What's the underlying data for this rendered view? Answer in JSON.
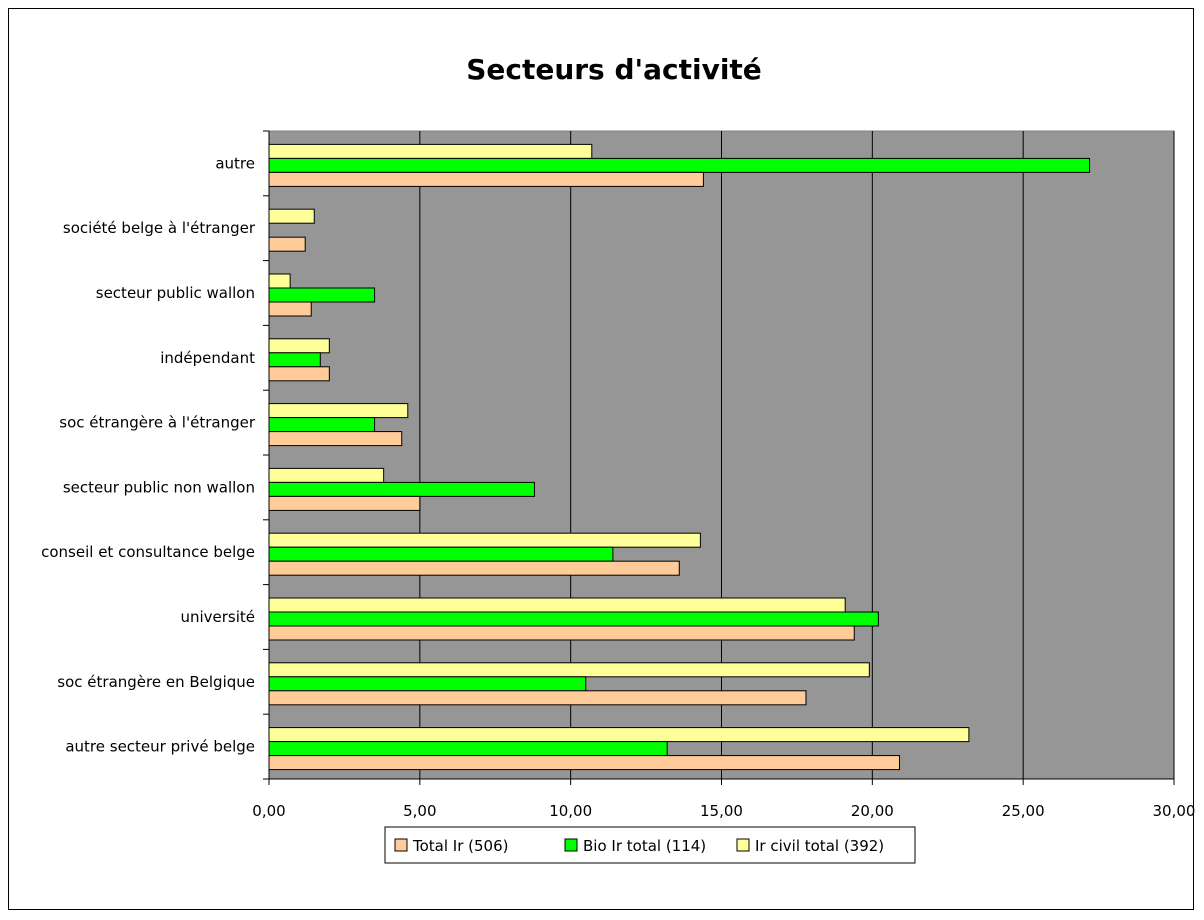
{
  "chart_data": {
    "type": "bar",
    "orientation": "horizontal",
    "title": "Secteurs d'activité",
    "xlabel": "%",
    "ylabel": "",
    "xlim": [
      0,
      30
    ],
    "x_ticks": [
      "0,00",
      "5,00",
      "10,00",
      "15,00",
      "20,00",
      "25,00",
      "30,00"
    ],
    "grid": "vertical",
    "legend_position": "bottom",
    "categories": [
      "autre",
      "société belge à l'étranger",
      "secteur public wallon",
      "indépendant",
      "soc étrangère à l'étranger",
      "secteur public non wallon",
      "conseil et consultance belge",
      "université",
      "soc étrangère en Belgique",
      "autre secteur privé belge"
    ],
    "series": [
      {
        "name": "Ir civil total (392)",
        "color": "#ffff99",
        "values": [
          10.7,
          1.5,
          0.7,
          2.0,
          4.6,
          3.8,
          14.3,
          19.1,
          19.9,
          23.2
        ]
      },
      {
        "name": "Bio Ir total (114)",
        "color": "#00ff00",
        "values": [
          27.2,
          0.0,
          3.5,
          1.7,
          3.5,
          8.8,
          11.4,
          20.2,
          10.5,
          13.2
        ]
      },
      {
        "name": "Total Ir (506)",
        "color": "#ffcc99",
        "values": [
          14.4,
          1.2,
          1.4,
          2.0,
          4.4,
          5.0,
          13.6,
          19.4,
          17.8,
          20.9
        ]
      }
    ],
    "legend_order": [
      "Total Ir (506)",
      "Bio Ir total (114)",
      "Ir civil total (392)"
    ],
    "plot_background": "#969696"
  }
}
